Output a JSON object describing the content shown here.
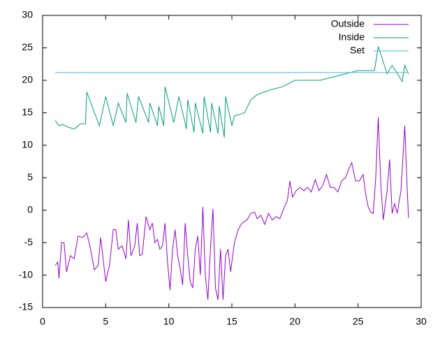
{
  "chart_data": {
    "type": "line",
    "xlim": [
      0,
      30
    ],
    "xticks": [
      0,
      5,
      10,
      15,
      20,
      25,
      30
    ],
    "ylim": [
      -15,
      30
    ],
    "yticks": [
      -15,
      -10,
      -5,
      0,
      5,
      10,
      15,
      20,
      25,
      30
    ],
    "legend": "top-right",
    "series": [
      {
        "name": "Outside",
        "color": "#9400d3",
        "x": [
          1,
          1.2,
          1.3,
          1.5,
          1.7,
          1.9,
          2.2,
          2.5,
          2.8,
          3.2,
          3.5,
          3.8,
          4.1,
          4.4,
          4.6,
          5.0,
          5.3,
          5.6,
          5.8,
          6.0,
          6.3,
          6.6,
          6.8,
          7.0,
          7.3,
          7.5,
          7.7,
          7.9,
          8.2,
          8.5,
          8.7,
          8.9,
          9.1,
          9.3,
          9.5,
          9.7,
          9.9,
          10.1,
          10.3,
          10.5,
          10.7,
          10.9,
          11.1,
          11.3,
          11.5,
          11.7,
          11.9,
          12.1,
          12.3,
          12.5,
          12.7,
          12.9,
          13.1,
          13.3,
          13.5,
          13.7,
          13.9,
          14.1,
          14.3,
          14.5,
          14.7,
          14.9,
          15.2,
          15.5,
          15.8,
          16.2,
          16.5,
          16.8,
          17.0,
          17.3,
          17.6,
          17.9,
          18.2,
          18.5,
          18.8,
          19.1,
          19.4,
          19.6,
          19.8,
          20.1,
          20.4,
          20.7,
          21.0,
          21.3,
          21.6,
          21.9,
          22.2,
          22.5,
          22.8,
          23.1,
          23.4,
          23.7,
          24.0,
          24.3,
          24.5,
          24.8,
          25.1,
          25.4,
          25.6,
          25.8,
          26.0,
          26.2,
          26.4,
          26.6,
          26.8,
          27.0,
          27.3,
          27.5,
          27.7,
          27.9,
          28.1,
          28.4,
          28.7,
          28.9,
          29.0
        ],
        "values": [
          -8.5,
          -8,
          -10.5,
          -5,
          -5,
          -9.5,
          -7,
          -7.5,
          -4,
          -4.2,
          -3.5,
          -6,
          -9.2,
          -8.5,
          -4.2,
          -11,
          -8.5,
          -3,
          -3,
          -6,
          -5.5,
          -7.5,
          -1.5,
          -7,
          -5.5,
          -2,
          -7,
          -6.8,
          -1,
          -3,
          -2,
          -5,
          -4.5,
          -6,
          -5.5,
          -2,
          -8,
          -12.3,
          -6,
          -3,
          -7,
          -9,
          -11.5,
          -2,
          -7,
          -11,
          -12,
          -6,
          -4,
          -10,
          0.5,
          -10.2,
          -13.8,
          -6,
          0.2,
          -12,
          -13.8,
          -6,
          -13.8,
          -7,
          -6,
          -9.5,
          -5,
          -3,
          -2,
          -1.5,
          -0.5,
          -0.3,
          -1.3,
          -0.8,
          -2.2,
          -0.5,
          -1.5,
          -1,
          -1.3,
          0.2,
          1.5,
          4.5,
          2,
          3,
          3.5,
          3,
          3.5,
          2.8,
          4.7,
          3,
          3.8,
          5.5,
          3.5,
          3.5,
          2.8,
          4.5,
          5,
          6.5,
          7.3,
          4.5,
          4.5,
          5.5,
          2.5,
          0.5,
          -0.3,
          -0.5,
          5,
          14.3,
          4,
          -1.5,
          3,
          7.8,
          -0.5,
          1,
          -0.5,
          3,
          13,
          3,
          -1.2
        ]
      },
      {
        "name": "Inside",
        "color": "#009e73",
        "x": [
          1,
          1.3,
          1.6,
          2.0,
          2.5,
          3.0,
          3.4,
          3.5,
          4.5,
          5.0,
          5.6,
          6.0,
          6.6,
          6.7,
          7.4,
          7.6,
          8.4,
          8.5,
          9.1,
          9.2,
          9.6,
          9.7,
          10.4,
          10.8,
          11.4,
          11.5,
          12.0,
          12.1,
          12.7,
          12.8,
          13.3,
          13.4,
          13.9,
          14.0,
          14.4,
          14.5,
          15.0,
          15.2,
          16.0,
          16.5,
          17.0,
          18.0,
          19.0,
          20.0,
          22.0,
          23.0,
          24.0,
          25.0,
          26.3,
          26.6,
          27.3,
          27.7,
          28.2,
          28.5,
          28.7,
          29.0
        ],
        "values": [
          13.8,
          13,
          13.2,
          12.8,
          12.5,
          13.3,
          13.3,
          18.2,
          13,
          17.5,
          13,
          16.5,
          13.5,
          18,
          13.5,
          17.5,
          13.5,
          16.5,
          13,
          16,
          13,
          19,
          13.5,
          17.5,
          12.5,
          17,
          12,
          16.5,
          11.8,
          17.5,
          12,
          16.5,
          11.8,
          16,
          11.2,
          17.5,
          13,
          14.5,
          15,
          17,
          17.8,
          18.5,
          19,
          20,
          20,
          20.5,
          21,
          21.5,
          21.5,
          25.2,
          21,
          22.3,
          20.8,
          19.8,
          22.3,
          21
        ]
      },
      {
        "name": "Set",
        "color": "#56b4e9",
        "x": [
          1,
          29
        ],
        "values": [
          21.2,
          21.2
        ]
      }
    ]
  }
}
